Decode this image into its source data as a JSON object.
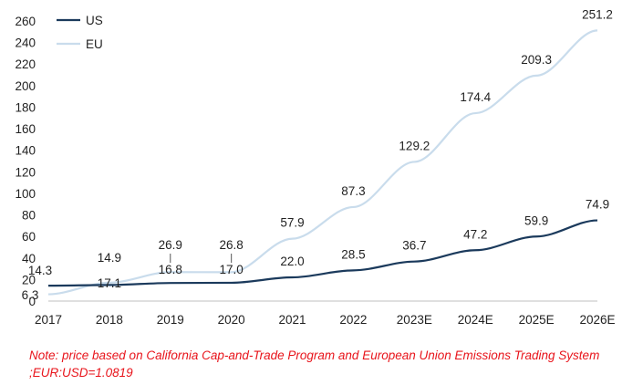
{
  "chart_data": {
    "type": "line",
    "categories": [
      "2017",
      "2018",
      "2019",
      "2020",
      "2021",
      "2022",
      "2023E",
      "2024E",
      "2025E",
      "2026E"
    ],
    "series": [
      {
        "name": "US",
        "color": "#1b3a5c",
        "values": [
          14.3,
          14.9,
          16.8,
          17.0,
          22.0,
          28.5,
          36.7,
          47.2,
          59.9,
          74.9
        ],
        "labels": [
          "14.3",
          "14.9",
          "16.8",
          "17.0",
          "22.0",
          "28.5",
          "36.7",
          "47.2",
          "59.9",
          "74.9"
        ]
      },
      {
        "name": "EU",
        "color": "#c9dcec",
        "values": [
          6.3,
          17.1,
          26.9,
          26.8,
          57.9,
          87.3,
          129.2,
          174.4,
          209.3,
          251.2
        ],
        "labels": [
          "6.3",
          "17.1",
          "26.9",
          "26.8",
          "57.9",
          "87.3",
          "129.2",
          "174.4",
          "209.3",
          "251.2"
        ]
      }
    ],
    "ylim": [
      0,
      260
    ],
    "yticks": [
      0,
      20,
      40,
      60,
      80,
      100,
      120,
      140,
      160,
      180,
      200,
      220,
      240,
      260
    ],
    "legend_position": "top-left",
    "grid": false,
    "title": "",
    "xlabel": "",
    "ylabel": ""
  },
  "note": {
    "text": "Note: price based on California Cap-and-Trade Program and European Union Emissions Trading System ;EUR:USD=1.0819"
  }
}
